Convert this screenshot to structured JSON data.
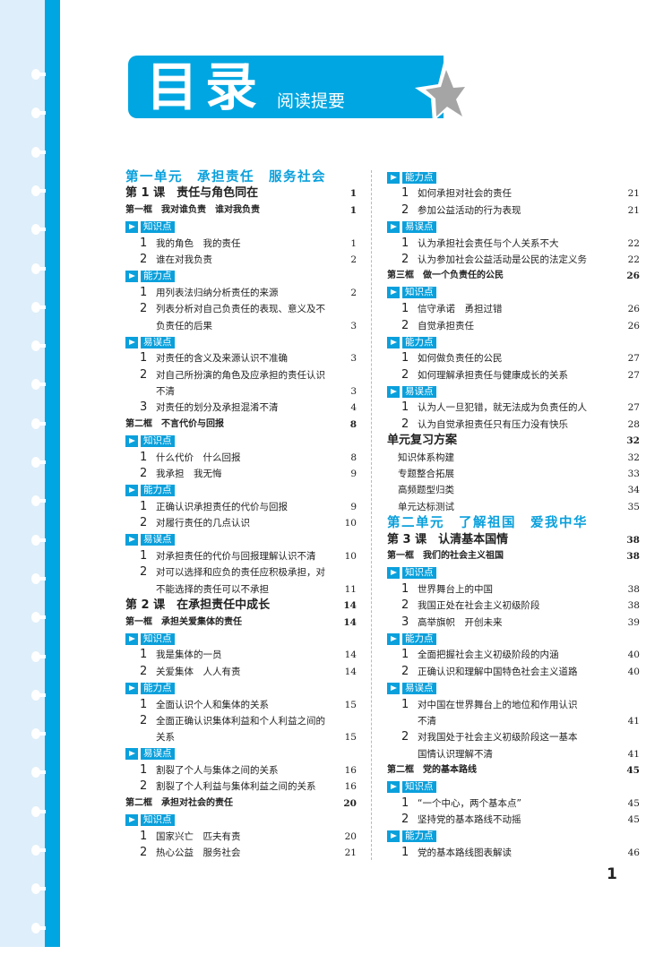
{
  "header": {
    "title": "目录",
    "subtitle": "阅读提要"
  },
  "colors": {
    "accent": "#00a6e1",
    "strip": "#deeefa",
    "star": "#a5a5a5"
  },
  "page_number": "1",
  "left": [
    {
      "type": "unit",
      "text": "第一单元　承担责任　服务社会"
    },
    {
      "type": "lesson",
      "text": "第 1 课　责任与角色同在",
      "page": "1"
    },
    {
      "type": "frame",
      "text": "第一框　我对谁负责　谁对我负责",
      "page": "1"
    },
    {
      "type": "tag",
      "text": "知识点"
    },
    {
      "type": "item",
      "num": "1",
      "lines": [
        "我的角色　我的责任"
      ],
      "page": "1"
    },
    {
      "type": "item",
      "num": "2",
      "lines": [
        "谁在对我负责"
      ],
      "page": "2"
    },
    {
      "type": "tag",
      "text": "能力点"
    },
    {
      "type": "item",
      "num": "1",
      "lines": [
        "用列表法归纳分析责任的来源"
      ],
      "page": "2"
    },
    {
      "type": "item",
      "num": "2",
      "lines": [
        "列表分析对自己负责任的表现、意义及不",
        "负责任的后果"
      ],
      "page": "3"
    },
    {
      "type": "tag",
      "text": "易误点"
    },
    {
      "type": "item",
      "num": "1",
      "lines": [
        "对责任的含义及来源认识不准确"
      ],
      "page": "3"
    },
    {
      "type": "item",
      "num": "2",
      "lines": [
        "对自己所扮演的角色及应承担的责任认识",
        "不清"
      ],
      "page": "3"
    },
    {
      "type": "item",
      "num": "3",
      "lines": [
        "对责任的划分及承担混淆不清"
      ],
      "page": "4"
    },
    {
      "type": "frame",
      "text": "第二框　不言代价与回报",
      "page": "8"
    },
    {
      "type": "tag",
      "text": "知识点"
    },
    {
      "type": "item",
      "num": "1",
      "lines": [
        "什么代价　什么回报"
      ],
      "page": "8"
    },
    {
      "type": "item",
      "num": "2",
      "lines": [
        "我承担　我无悔"
      ],
      "page": "9"
    },
    {
      "type": "tag",
      "text": "能力点"
    },
    {
      "type": "item",
      "num": "1",
      "lines": [
        "正确认识承担责任的代价与回报"
      ],
      "page": "9"
    },
    {
      "type": "item",
      "num": "2",
      "lines": [
        "对履行责任的几点认识"
      ],
      "page": "10"
    },
    {
      "type": "tag",
      "text": "易误点"
    },
    {
      "type": "item",
      "num": "1",
      "lines": [
        "对承担责任的代价与回报理解认识不清"
      ],
      "page": "10"
    },
    {
      "type": "item",
      "num": "2",
      "lines": [
        "对可以选择和应负的责任应积极承担，对",
        "不能选择的责任可以不承担"
      ],
      "page": "11"
    },
    {
      "type": "lesson",
      "text": "第 2 课　在承担责任中成长",
      "page": "14"
    },
    {
      "type": "frame",
      "text": "第一框　承担关爱集体的责任",
      "page": "14"
    },
    {
      "type": "tag",
      "text": "知识点"
    },
    {
      "type": "item",
      "num": "1",
      "lines": [
        "我是集体的一员"
      ],
      "page": "14"
    },
    {
      "type": "item",
      "num": "2",
      "lines": [
        "关爱集体　人人有责"
      ],
      "page": "14"
    },
    {
      "type": "tag",
      "text": "能力点"
    },
    {
      "type": "item",
      "num": "1",
      "lines": [
        "全面认识个人和集体的关系"
      ],
      "page": "15"
    },
    {
      "type": "item",
      "num": "2",
      "lines": [
        "全面正确认识集体利益和个人利益之间的",
        "关系"
      ],
      "page": "15"
    },
    {
      "type": "tag",
      "text": "易误点"
    },
    {
      "type": "item",
      "num": "1",
      "lines": [
        "割裂了个人与集体之间的关系"
      ],
      "page": "16"
    },
    {
      "type": "item",
      "num": "2",
      "lines": [
        "割裂了个人利益与集体利益之间的关系"
      ],
      "page": "16"
    },
    {
      "type": "frame",
      "text": "第二框　承担对社会的责任",
      "page": "20"
    },
    {
      "type": "tag",
      "text": "知识点"
    },
    {
      "type": "item",
      "num": "1",
      "lines": [
        "国家兴亡　匹夫有责"
      ],
      "page": "20"
    },
    {
      "type": "item",
      "num": "2",
      "lines": [
        "热心公益　服务社会"
      ],
      "page": "21"
    }
  ],
  "right": [
    {
      "type": "tag",
      "text": "能力点"
    },
    {
      "type": "item",
      "num": "1",
      "lines": [
        "如何承担对社会的责任"
      ],
      "page": "21"
    },
    {
      "type": "item",
      "num": "2",
      "lines": [
        "参加公益活动的行为表现"
      ],
      "page": "21"
    },
    {
      "type": "tag",
      "text": "易误点"
    },
    {
      "type": "item",
      "num": "1",
      "lines": [
        "认为承担社会责任与个人关系不大"
      ],
      "page": "22"
    },
    {
      "type": "item",
      "num": "2",
      "lines": [
        "认为参加社会公益活动是公民的法定义务"
      ],
      "page": "22"
    },
    {
      "type": "frame",
      "text": "第三框　做一个负责任的公民",
      "page": "26"
    },
    {
      "type": "tag",
      "text": "知识点"
    },
    {
      "type": "item",
      "num": "1",
      "lines": [
        "信守承诺　勇担过错"
      ],
      "page": "26"
    },
    {
      "type": "item",
      "num": "2",
      "lines": [
        "自觉承担责任"
      ],
      "page": "26"
    },
    {
      "type": "tag",
      "text": "能力点"
    },
    {
      "type": "item",
      "num": "1",
      "lines": [
        "如何做负责任的公民"
      ],
      "page": "27"
    },
    {
      "type": "item",
      "num": "2",
      "lines": [
        "如何理解承担责任与健康成长的关系"
      ],
      "page": "27"
    },
    {
      "type": "tag",
      "text": "易误点"
    },
    {
      "type": "item",
      "num": "1",
      "lines": [
        "认为人一旦犯错，就无法成为负责任的人"
      ],
      "page": "27"
    },
    {
      "type": "item",
      "num": "2",
      "lines": [
        "认为自觉承担责任只有压力没有快乐"
      ],
      "page": "28"
    },
    {
      "type": "review",
      "text": "单元复习方案",
      "page": "32"
    },
    {
      "type": "sub",
      "text": "知识体系构建",
      "page": "32"
    },
    {
      "type": "sub",
      "text": "专题整合拓展",
      "page": "33"
    },
    {
      "type": "sub",
      "text": "高频题型归类",
      "page": "34"
    },
    {
      "type": "sub",
      "text": "单元达标测试",
      "page": "35"
    },
    {
      "type": "unit",
      "text": "第二单元　了解祖国　爱我中华"
    },
    {
      "type": "lesson",
      "text": "第 3 课　认清基本国情",
      "page": "38"
    },
    {
      "type": "frame",
      "text": "第一框　我们的社会主义祖国",
      "page": "38"
    },
    {
      "type": "tag",
      "text": "知识点"
    },
    {
      "type": "item",
      "num": "1",
      "lines": [
        "世界舞台上的中国"
      ],
      "page": "38"
    },
    {
      "type": "item",
      "num": "2",
      "lines": [
        "我国正处在社会主义初级阶段"
      ],
      "page": "38"
    },
    {
      "type": "item",
      "num": "3",
      "lines": [
        "高举旗帜　开创未来"
      ],
      "page": "39"
    },
    {
      "type": "tag",
      "text": "能力点"
    },
    {
      "type": "item",
      "num": "1",
      "lines": [
        "全面把握社会主义初级阶段的内涵"
      ],
      "page": "40"
    },
    {
      "type": "item",
      "num": "2",
      "lines": [
        "正确认识和理解中国特色社会主义道路"
      ],
      "page": "40"
    },
    {
      "type": "tag",
      "text": "易误点"
    },
    {
      "type": "item",
      "num": "1",
      "lines": [
        "对中国在世界舞台上的地位和作用认识",
        "不清"
      ],
      "page": "41"
    },
    {
      "type": "item",
      "num": "2",
      "lines": [
        "对我国处于社会主义初级阶段这一基本",
        "国情认识理解不清"
      ],
      "page": "41"
    },
    {
      "type": "frame",
      "text": "第二框　党的基本路线",
      "page": "45"
    },
    {
      "type": "tag",
      "text": "知识点"
    },
    {
      "type": "item",
      "num": "1",
      "lines": [
        "“一个中心，两个基本点”"
      ],
      "page": "45"
    },
    {
      "type": "item",
      "num": "2",
      "lines": [
        "坚持党的基本路线不动摇"
      ],
      "page": "45"
    },
    {
      "type": "tag",
      "text": "能力点"
    },
    {
      "type": "item",
      "num": "1",
      "lines": [
        "党的基本路线图表解读"
      ],
      "page": "46"
    }
  ]
}
